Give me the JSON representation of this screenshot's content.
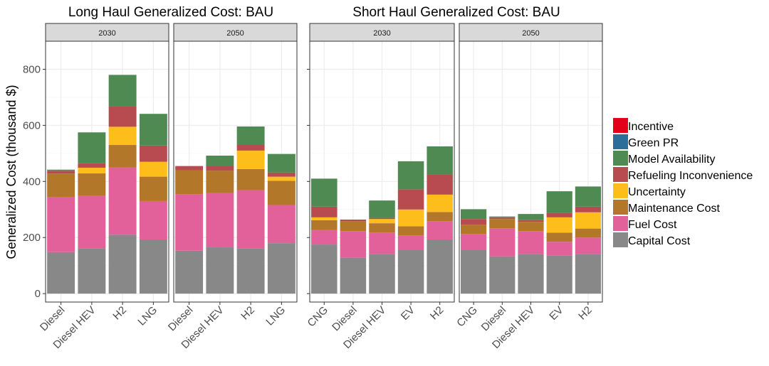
{
  "figure_titles": [
    "Long Haul Generalized Cost: BAU",
    "Short Haul Generalized Cost: BAU"
  ],
  "ylabel": "Generalized Cost (thousand $)",
  "legend": {
    "items": [
      {
        "name": "Incentive",
        "color": "#E2001A"
      },
      {
        "name": "Green PR",
        "color": "#2B6E99"
      },
      {
        "name": "Model Availability",
        "color": "#4E8A51"
      },
      {
        "name": "Refueling Inconvenience",
        "color": "#B84B4F"
      },
      {
        "name": "Uncertainty",
        "color": "#FDBD1B"
      },
      {
        "name": "Maintenance Cost",
        "color": "#B3772A"
      },
      {
        "name": "Fuel Cost",
        "color": "#E3619A"
      },
      {
        "name": "Capital Cost",
        "color": "#888888"
      }
    ]
  },
  "chart_data": [
    {
      "type": "bar",
      "stacked": true,
      "title": "Long Haul Generalized Cost: BAU",
      "ylabel": "Generalized Cost (thousand $)",
      "ylim": [
        -30,
        900
      ],
      "yticks": [
        0,
        200,
        400,
        600,
        800
      ],
      "grid": true,
      "legend_position": "right",
      "panels": [
        {
          "label": "2030",
          "categories": [
            "Diesel",
            "Diesel HEV",
            "H2",
            "LNG"
          ],
          "series": [
            {
              "name": "Capital Cost",
              "values": [
                148,
                162,
                210,
                193
              ]
            },
            {
              "name": "Fuel Cost",
              "values": [
                196,
                187,
                240,
                137
              ]
            },
            {
              "name": "Maintenance Cost",
              "values": [
                84,
                80,
                80,
                87
              ]
            },
            {
              "name": "Uncertainty",
              "values": [
                0,
                20,
                65,
                53
              ]
            },
            {
              "name": "Refueling Inconvenience",
              "values": [
                10,
                16,
                72,
                58
              ]
            },
            {
              "name": "Model Availability",
              "values": [
                4,
                110,
                113,
                113
              ]
            },
            {
              "name": "Green PR",
              "values": [
                0,
                0,
                0,
                0
              ]
            },
            {
              "name": "Incentive",
              "values": [
                0,
                0,
                0,
                0
              ]
            }
          ]
        },
        {
          "label": "2050",
          "categories": [
            "Diesel",
            "Diesel HEV",
            "H2",
            "LNG"
          ],
          "series": [
            {
              "name": "Capital Cost",
              "values": [
                153,
                165,
                162,
                180
              ]
            },
            {
              "name": "Fuel Cost",
              "values": [
                202,
                193,
                207,
                136
              ]
            },
            {
              "name": "Maintenance Cost",
              "values": [
                85,
                80,
                75,
                86
              ]
            },
            {
              "name": "Uncertainty",
              "values": [
                0,
                0,
                66,
                15
              ]
            },
            {
              "name": "Refueling Inconvenience",
              "values": [
                15,
                16,
                20,
                15
              ]
            },
            {
              "name": "Model Availability",
              "values": [
                0,
                38,
                66,
                66
              ]
            },
            {
              "name": "Green PR",
              "values": [
                0,
                0,
                0,
                0
              ]
            },
            {
              "name": "Incentive",
              "values": [
                0,
                0,
                0,
                0
              ]
            }
          ]
        }
      ]
    },
    {
      "type": "bar",
      "stacked": true,
      "title": "Short Haul Generalized Cost: BAU",
      "ylim": [
        -30,
        900
      ],
      "yticks": [
        0,
        200,
        400,
        600,
        800
      ],
      "grid": true,
      "legend_position": "right",
      "panels": [
        {
          "label": "2030",
          "categories": [
            "CNG",
            "Diesel",
            "Diesel HEV",
            "EV",
            "H2"
          ],
          "series": [
            {
              "name": "Capital Cost",
              "values": [
                175,
                128,
                140,
                155,
                193
              ]
            },
            {
              "name": "Fuel Cost",
              "values": [
                52,
                95,
                78,
                53,
                65
              ]
            },
            {
              "name": "Maintenance Cost",
              "values": [
                35,
                35,
                33,
                32,
                33
              ]
            },
            {
              "name": "Uncertainty",
              "values": [
                10,
                0,
                15,
                60,
                62
              ]
            },
            {
              "name": "Refueling Inconvenience",
              "values": [
                38,
                6,
                4,
                72,
                72
              ]
            },
            {
              "name": "Model Availability",
              "values": [
                100,
                0,
                62,
                100,
                100
              ]
            },
            {
              "name": "Green PR",
              "values": [
                0,
                0,
                0,
                0,
                0
              ]
            },
            {
              "name": "Incentive",
              "values": [
                0,
                0,
                0,
                0,
                0
              ]
            }
          ]
        },
        {
          "label": "2050",
          "categories": [
            "CNG",
            "Diesel",
            "Diesel HEV",
            "EV",
            "H2"
          ],
          "series": [
            {
              "name": "Capital Cost",
              "values": [
                155,
                133,
                140,
                135,
                140
              ]
            },
            {
              "name": "Fuel Cost",
              "values": [
                58,
                100,
                83,
                50,
                60
              ]
            },
            {
              "name": "Maintenance Cost",
              "values": [
                33,
                33,
                33,
                32,
                32
              ]
            },
            {
              "name": "Uncertainty",
              "values": [
                0,
                0,
                0,
                55,
                58
              ]
            },
            {
              "name": "Refueling Inconvenience",
              "values": [
                20,
                5,
                6,
                15,
                20
              ]
            },
            {
              "name": "Model Availability",
              "values": [
                35,
                4,
                22,
                78,
                72
              ]
            },
            {
              "name": "Green PR",
              "values": [
                0,
                0,
                0,
                0,
                0
              ]
            },
            {
              "name": "Incentive",
              "values": [
                0,
                0,
                0,
                0,
                0
              ]
            }
          ]
        }
      ]
    }
  ]
}
